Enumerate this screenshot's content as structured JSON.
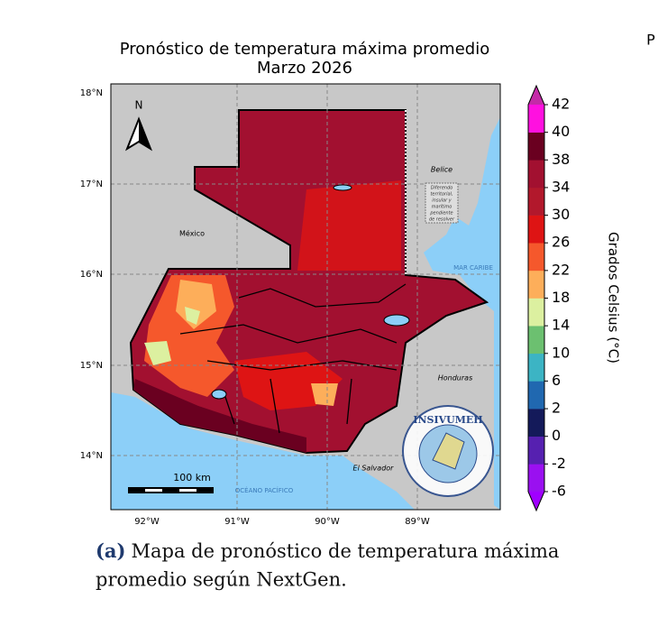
{
  "title": "Pronóstico de temperatura máxima promedio",
  "subtitle": "Marzo 2026",
  "corner_text": "P",
  "map": {
    "lat_ticks": [
      "18°N",
      "17°N",
      "16°N",
      "15°N",
      "14°N"
    ],
    "lon_ticks": [
      "92°W",
      "91°W",
      "90°W",
      "89°W"
    ],
    "labels": {
      "mexico": "México",
      "belice": "Belice",
      "honduras": "Honduras",
      "el_salvador": "El Salvador",
      "mar_caribe": "MAR CARIBE",
      "oceano": "OCÉANO PACÍFICO"
    },
    "north": "N",
    "scale": "100 km",
    "dispute": [
      "Diferendo",
      "territorial,",
      "insular y",
      "marítimo",
      "pendiente",
      "de resolver"
    ],
    "logo": "INSIVUMEH"
  },
  "colorbar": {
    "label": "Grados Celsius (°C)",
    "ticks": [
      -6,
      -2,
      0,
      2,
      6,
      10,
      14,
      18,
      22,
      26,
      30,
      34,
      38,
      40,
      42
    ],
    "colors": [
      "#9a10f0",
      "#5620b0",
      "#141a5a",
      "#2068b0",
      "#3cb4c4",
      "#6cc070",
      "#dcf0a0",
      "#fdae5a",
      "#f5582c",
      "#de1414",
      "#b2182c",
      "#a21030",
      "#6a0020",
      "#ff10e0"
    ],
    "under_color": "#a000ff",
    "over_color": "#c42aa8"
  },
  "caption": {
    "tag": "(a)",
    "lines": [
      "Mapa de pronóstico de temperatura máxima",
      "promedio según NextGen."
    ]
  }
}
